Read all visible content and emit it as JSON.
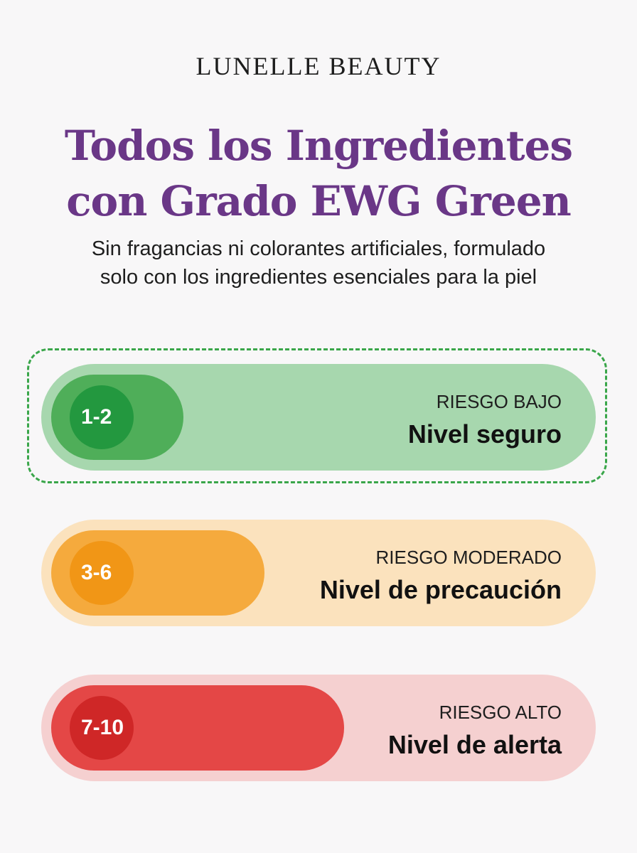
{
  "brand": "LUNELLE BEAUTY",
  "headline": {
    "line1": "Todos los Ingredientes",
    "line2": "con Grado EWG Green"
  },
  "subtitle": {
    "line1": "Sin fragancias ni colorantes artificiales, formulado",
    "line2": "solo con los ingredientes esenciales para la piel"
  },
  "levels": [
    {
      "range": "1-2",
      "risk": "RIESGO BAJO",
      "label": "Nivel seguro",
      "color": "#23983f",
      "highlighted": true
    },
    {
      "range": "3-6",
      "risk": "RIESGO MODERADO",
      "label": "Nivel de precaución",
      "color": "#f19616"
    },
    {
      "range": "7-10",
      "risk": "RIESGO ALTO",
      "label": "Nivel de alerta",
      "color": "#cf2727"
    }
  ],
  "colors": {
    "title": "#6a3787",
    "highlight_border": "#3aa64a"
  }
}
